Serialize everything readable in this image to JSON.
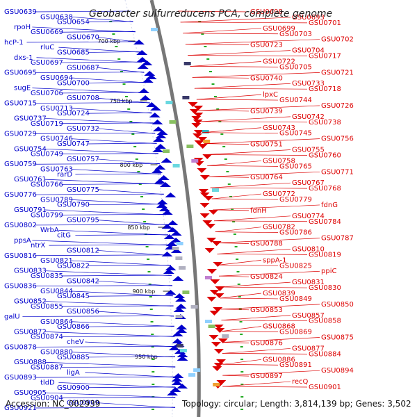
{
  "title": "Geobacter sulfurreducens PCA, complete genome",
  "footer": {
    "accession": "Accession: NC_002939",
    "topology": "Topology: circular; Length: 3,814,139 bp; Genes: 3,502"
  },
  "colors": {
    "forward": "#0000cc",
    "reverse": "#dd0000",
    "backbone": "#777777"
  },
  "kbp_labels": [
    "700 kbp",
    "750 kbp",
    "800 kbp",
    "850 kbp",
    "900 kbp",
    "950 kbp"
  ],
  "left_labels": [
    "GSU0639",
    "GSU0638",
    "GSU0654",
    "rpoH",
    "GSU0669",
    "GSU0670",
    "hcP-1",
    "rluC",
    "GSU0685",
    "dxs-1",
    "GSU0697",
    "GSU0687",
    "GSU0695",
    "GSU0694",
    "GSU0700",
    "sugE",
    "GSU0706",
    "GSU0708",
    "GSU0715",
    "GSU0713",
    "GSU0724",
    "GSU0737",
    "GSU0719",
    "GSU0732",
    "GSU0729",
    "GSU0746",
    "GSU0747",
    "GSU0754",
    "GSU0749",
    "GSU0757",
    "GSU0759",
    "GSU0763",
    "rarD",
    "GSU0761",
    "GSU0766",
    "GSU0775",
    "GSU0776",
    "GSU0789",
    "GSU0790",
    "GSU0791",
    "GSU0799",
    "GSU0795",
    "GSU0802",
    "WrbA",
    "citG",
    "ppsA",
    "ntrX",
    "GSU0812",
    "GSU0816",
    "GSU0821",
    "GSU0822",
    "GSU0833",
    "GSU0835",
    "GSU0842",
    "GSU0836",
    "GSU0844",
    "GSU0845",
    "GSU0852",
    "GSU0855",
    "GSU0856",
    "galU",
    "GSU0864",
    "GSU0866",
    "GSU0872",
    "GSU0874",
    "cheV",
    "GSU0878",
    "GSU0880",
    "GSU0885",
    "GSU0888",
    "GSU0887",
    "ligA",
    "GSU0893",
    "tldD",
    "GSU0900",
    "GSU0905",
    "GSU0904",
    "GSU0909",
    "GSU0921"
  ],
  "right_labels": [
    "GSU0698",
    "GSU0693",
    "GSU0701",
    "GSU0699",
    "GSU0703",
    "GSU0702",
    "GSU0723",
    "GSU0704",
    "GSU0717",
    "GSU0722",
    "GSU0705",
    "GSU0721",
    "GSU0740",
    "GSU0733",
    "GSU0718",
    "lpxC",
    "GSU0744",
    "GSU0726",
    "GSU0739",
    "GSU0742",
    "GSU0738",
    "GSU0743",
    "GSU0745",
    "GSU0756",
    "GSU0751",
    "GSU0755",
    "GSU0760",
    "GSU0758",
    "GSU0765",
    "GSU0771",
    "GSU0764",
    "GSU0767",
    "GSU0768",
    "GSU0772",
    "GSU0779",
    "fdnG",
    "fdnH",
    "GSU0774",
    "GSU0784",
    "GSU0782",
    "GSU0786",
    "GSU0787",
    "GSU0788",
    "GSU0810",
    "GSU0819",
    "sppA-1",
    "GSU0825",
    "ppiC",
    "GSU0824",
    "GSU0831",
    "GSU0830",
    "GSU0839",
    "GSU0849",
    "GSU0850",
    "GSU0853",
    "GSU0857",
    "GSU0858",
    "GSU0868",
    "GSU0869",
    "GSU0875",
    "GSU0876",
    "GSU0877",
    "GSU0884",
    "GSU0886",
    "GSU0891",
    "GSU0894",
    "GSU0897",
    "recQ",
    "GSU0901"
  ]
}
